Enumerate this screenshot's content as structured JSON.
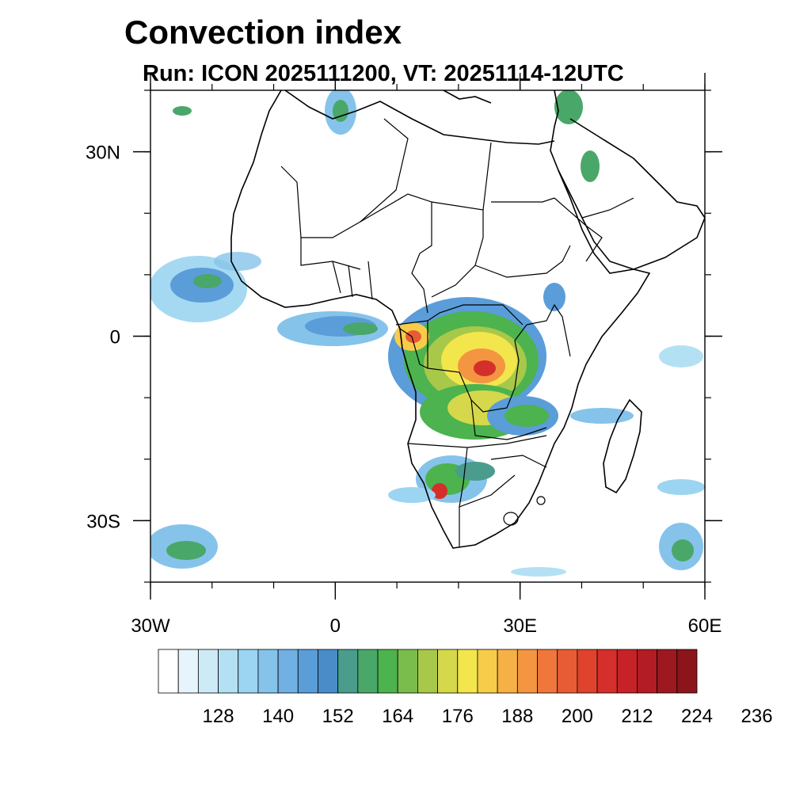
{
  "chart_data": {
    "type": "map",
    "title": "Convection index",
    "subtitle": "Run: ICON 2025111200,  VT: 20251114-12UTC",
    "lon_range": [
      -30,
      60
    ],
    "lat_range": [
      -40,
      40
    ],
    "x_ticks": [
      {
        "value": -30,
        "label": "30W"
      },
      {
        "value": 0,
        "label": "0"
      },
      {
        "value": 30,
        "label": "30E"
      },
      {
        "value": 60,
        "label": "60E"
      }
    ],
    "y_ticks": [
      {
        "value": 30,
        "label": "30N"
      },
      {
        "value": 0,
        "label": "0"
      },
      {
        "value": -30,
        "label": "30S"
      }
    ],
    "colorbar": {
      "labels": [
        "128",
        "140",
        "152",
        "164",
        "176",
        "188",
        "200",
        "212",
        "224",
        "236"
      ],
      "start": 116,
      "step": 4,
      "colors": [
        "#ffffff",
        "#e6f4fb",
        "#cdeaf7",
        "#b4e0f4",
        "#9bd5f1",
        "#86c3ea",
        "#70b0e2",
        "#5a9dd9",
        "#4a8cc8",
        "#4a9c8c",
        "#4aa76a",
        "#4cb34e",
        "#7bbd4c",
        "#a8c84a",
        "#d5d84a",
        "#f2e64c",
        "#f7cc4a",
        "#f6b146",
        "#f49542",
        "#ef773c",
        "#e85c35",
        "#df432e",
        "#d42f2a",
        "#c62328",
        "#b31c25",
        "#9e1820",
        "#8b151b"
      ]
    }
  }
}
